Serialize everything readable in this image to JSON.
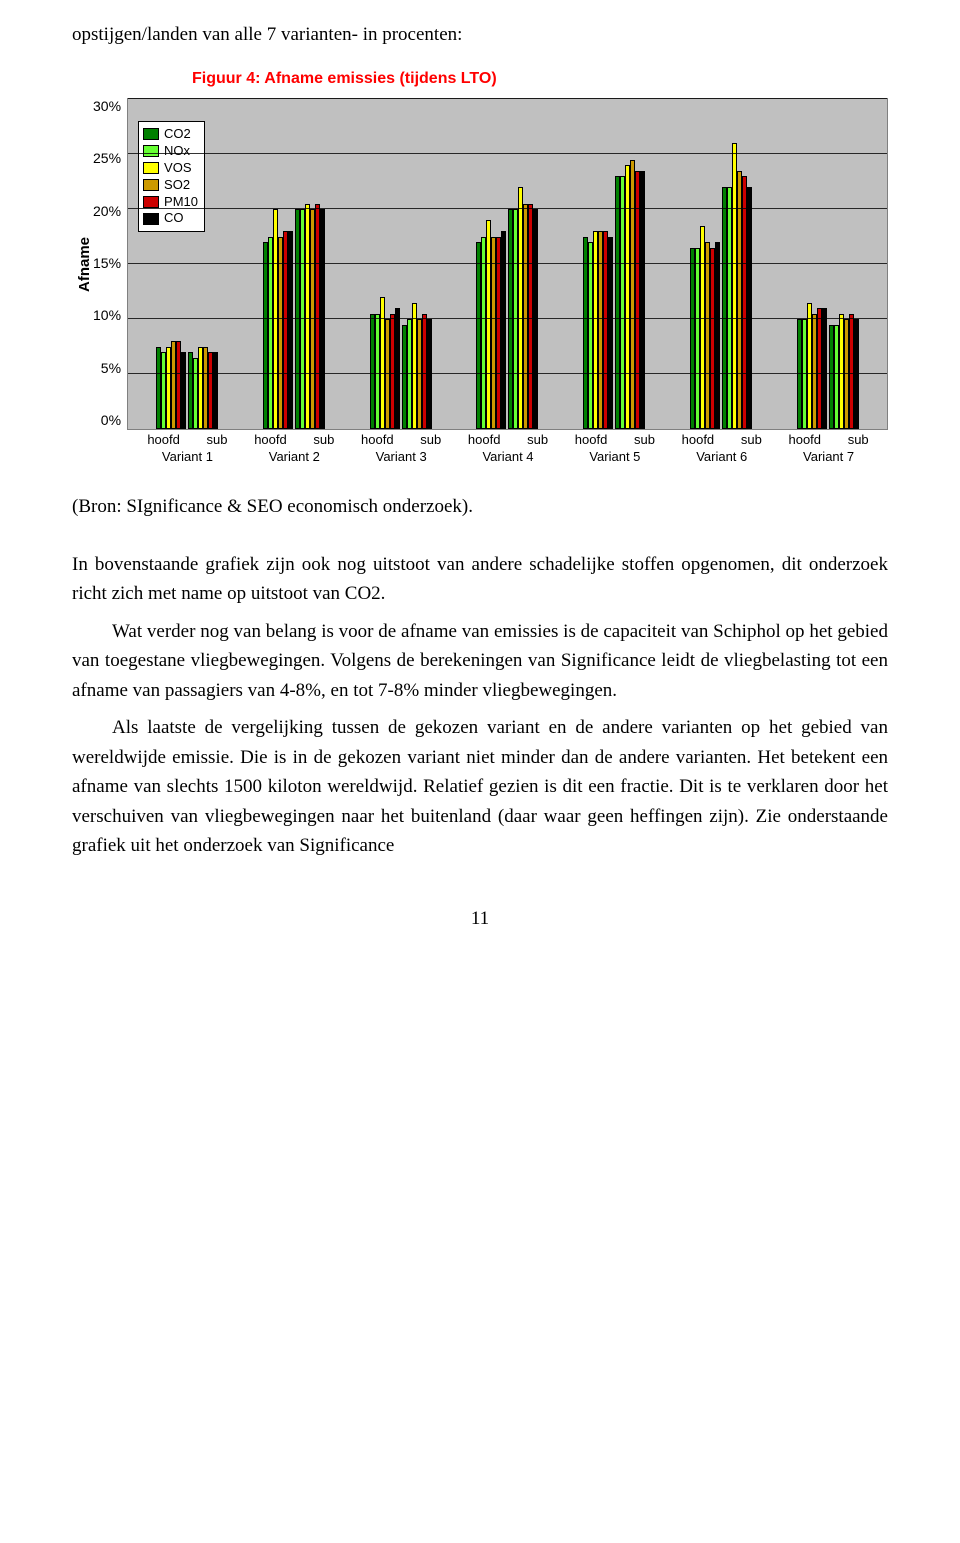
{
  "intro_line": "opstijgen/landen van alle 7 varianten- in procenten:",
  "source_line": "(Bron: SIgnificance & SEO economisch onderzoek).",
  "para1": "In bovenstaande grafiek zijn ook nog uitstoot van andere schadelijke stoffen opgenomen, dit onderzoek richt zich met name op uitstoot van CO2.",
  "para2": "Wat verder nog van belang is voor de afname van emissies is de capaciteit van Schiphol op het gebied van toegestane vliegbewegingen. Volgens de berekeningen van Significance leidt de vliegbelasting tot een afname van passagiers van 4-8%, en tot 7-8% minder vliegbewegingen.",
  "para3": "Als laatste de vergelijking tussen de gekozen variant en de andere varianten op het gebied van wereldwijde emissie. Die is in de gekozen variant niet minder dan de andere varianten. Het betekent een afname van slechts 1500 kiloton wereldwijd. Relatief gezien is dit een fractie. Dit is te verklaren door het verschuiven van vliegbewegingen naar het buitenland (daar waar geen heffingen zijn). Zie onderstaande grafiek uit het onderzoek van Significance",
  "page_number": "11",
  "chart": {
    "type": "bar",
    "title": "Figuur 4: Afname emissies (tijdens LTO)",
    "y_axis_label": "Afname",
    "y_ticks": [
      "30%",
      "25%",
      "20%",
      "15%",
      "10%",
      "5%",
      "0%"
    ],
    "y_max": 30,
    "background_color": "#c0c0c0",
    "grid_color": "#000000",
    "border_color": "#808080",
    "series": [
      {
        "key": "CO2",
        "label": "CO2",
        "color": "#008000"
      },
      {
        "key": "NOx",
        "label": "NOx",
        "color": "#66ff33"
      },
      {
        "key": "VOS",
        "label": "VOS",
        "color": "#ffff00"
      },
      {
        "key": "SO2",
        "label": "SO2",
        "color": "#cc9900"
      },
      {
        "key": "PM10",
        "label": "PM10",
        "color": "#cc0000"
      },
      {
        "key": "CO",
        "label": "CO",
        "color": "#000000"
      }
    ],
    "sub_labels": [
      "hoofd",
      "sub"
    ],
    "categories": [
      {
        "label": "Variant 1",
        "hoofd": {
          "CO2": 7.5,
          "NOx": 7.0,
          "VOS": 7.5,
          "SO2": 8.0,
          "PM10": 8.0,
          "CO": 7.0
        },
        "sub": {
          "CO2": 7.0,
          "NOx": 6.5,
          "VOS": 7.5,
          "SO2": 7.5,
          "PM10": 7.0,
          "CO": 7.0
        }
      },
      {
        "label": "Variant 2",
        "hoofd": {
          "CO2": 17.0,
          "NOx": 17.5,
          "VOS": 20.0,
          "SO2": 17.5,
          "PM10": 18.0,
          "CO": 18.0
        },
        "sub": {
          "CO2": 20.0,
          "NOx": 20.0,
          "VOS": 20.5,
          "SO2": 20.0,
          "PM10": 20.5,
          "CO": 20.0
        }
      },
      {
        "label": "Variant 3",
        "hoofd": {
          "CO2": 10.5,
          "NOx": 10.5,
          "VOS": 12.0,
          "SO2": 10.0,
          "PM10": 10.5,
          "CO": 11.0
        },
        "sub": {
          "CO2": 9.5,
          "NOx": 10.0,
          "VOS": 11.5,
          "SO2": 10.0,
          "PM10": 10.5,
          "CO": 10.0
        }
      },
      {
        "label": "Variant 4",
        "hoofd": {
          "CO2": 17.0,
          "NOx": 17.5,
          "VOS": 19.0,
          "SO2": 17.5,
          "PM10": 17.5,
          "CO": 18.0
        },
        "sub": {
          "CO2": 20.0,
          "NOx": 20.0,
          "VOS": 22.0,
          "SO2": 20.5,
          "PM10": 20.5,
          "CO": 20.0
        }
      },
      {
        "label": "Variant 5",
        "hoofd": {
          "CO2": 17.5,
          "NOx": 17.0,
          "VOS": 18.0,
          "SO2": 18.0,
          "PM10": 18.0,
          "CO": 17.5
        },
        "sub": {
          "CO2": 23.0,
          "NOx": 23.0,
          "VOS": 24.0,
          "SO2": 24.5,
          "PM10": 23.5,
          "CO": 23.5
        }
      },
      {
        "label": "Variant 6",
        "hoofd": {
          "CO2": 16.5,
          "NOx": 16.5,
          "VOS": 18.5,
          "SO2": 17.0,
          "PM10": 16.5,
          "CO": 17.0
        },
        "sub": {
          "CO2": 22.0,
          "NOx": 22.0,
          "VOS": 26.0,
          "SO2": 23.5,
          "PM10": 23.0,
          "CO": 22.0
        }
      },
      {
        "label": "Variant 7",
        "hoofd": {
          "CO2": 10.0,
          "NOx": 10.0,
          "VOS": 11.5,
          "SO2": 10.5,
          "PM10": 11.0,
          "CO": 11.0
        },
        "sub": {
          "CO2": 9.5,
          "NOx": 9.5,
          "VOS": 10.5,
          "SO2": 10.0,
          "PM10": 10.5,
          "CO": 10.0
        }
      }
    ]
  }
}
